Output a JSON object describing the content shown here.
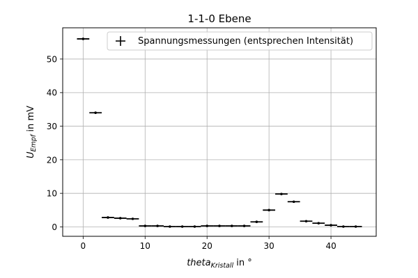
{
  "chart_data": {
    "type": "scatter",
    "title": "1-1-0 Ebene",
    "xlabel": {
      "main": "theta",
      "sub": "Kristall",
      "suffix": " in °"
    },
    "ylabel": {
      "main": "U",
      "sub": "Empf",
      "suffix": " in mV"
    },
    "xlim": [
      -3.3,
      47.3
    ],
    "ylim": [
      -2.8,
      59.3
    ],
    "xticks": [
      0,
      10,
      20,
      30,
      40
    ],
    "yticks": [
      0,
      10,
      20,
      30,
      40,
      50
    ],
    "grid": true,
    "legend_position": "top-right",
    "series": [
      {
        "name": "Spannungsmessungen (entsprechen Intensität)",
        "marker": "errorbar",
        "color": "#000000",
        "x_error": 1,
        "points": [
          {
            "x": 0,
            "y": 56.0
          },
          {
            "x": 2,
            "y": 34.0
          },
          {
            "x": 4,
            "y": 2.8
          },
          {
            "x": 6,
            "y": 2.6
          },
          {
            "x": 8,
            "y": 2.4
          },
          {
            "x": 10,
            "y": 0.3
          },
          {
            "x": 12,
            "y": 0.3
          },
          {
            "x": 14,
            "y": 0.1
          },
          {
            "x": 16,
            "y": 0.1
          },
          {
            "x": 18,
            "y": 0.1
          },
          {
            "x": 20,
            "y": 0.3
          },
          {
            "x": 22,
            "y": 0.3
          },
          {
            "x": 24,
            "y": 0.3
          },
          {
            "x": 26,
            "y": 0.3
          },
          {
            "x": 28,
            "y": 1.5
          },
          {
            "x": 30,
            "y": 5.0
          },
          {
            "x": 32,
            "y": 9.8
          },
          {
            "x": 34,
            "y": 7.5
          },
          {
            "x": 36,
            "y": 1.7
          },
          {
            "x": 38,
            "y": 1.1
          },
          {
            "x": 40,
            "y": 0.5
          },
          {
            "x": 42,
            "y": 0.1
          },
          {
            "x": 44,
            "y": 0.1
          }
        ]
      }
    ]
  }
}
